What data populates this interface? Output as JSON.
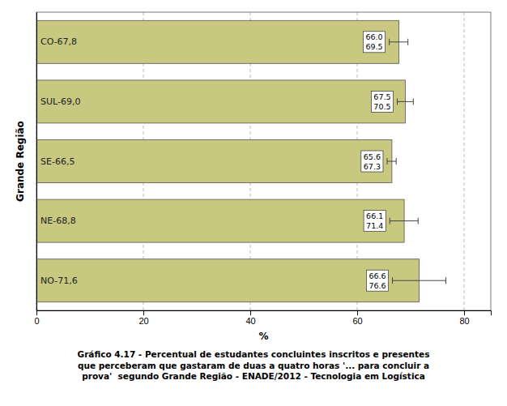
{
  "chart_data": {
    "type": "bar",
    "orientation": "horizontal",
    "title": "Gráfico 4.17 - Percentual de estudantes concluintes inscritos e presentes\nque perceberam que gastaram de duas a quatro horas '... para concluir a\nprova'  segundo Grande Região - ENADE/2012 - Tecnologia em Logística",
    "xlabel": "%",
    "ylabel": "Grande Região",
    "categories": [
      "NO",
      "NE",
      "SE",
      "SUL",
      "CO"
    ],
    "values": [
      71.6,
      68.8,
      66.5,
      69.0,
      67.8
    ],
    "color": "#C8C880",
    "ci_low": [
      66.6,
      66.1,
      65.6,
      67.5,
      66.0
    ],
    "ci_high": [
      76.6,
      71.4,
      67.3,
      70.5,
      69.5
    ],
    "ci_low_labels": [
      "66.6",
      "66.1",
      "65.6",
      "67.5",
      "66.0"
    ],
    "ci_high_labels": [
      "76.6",
      "71.4",
      "67.3",
      "70.5",
      "69.5"
    ],
    "data_labels": true,
    "value_labels": [
      "NO-71,6",
      "NE-68,8",
      "SE-66,5",
      "SUL-69,0",
      "CO-67,8"
    ],
    "xlim": [
      0,
      85
    ],
    "xticks": [
      0,
      20,
      40,
      60,
      80
    ],
    "grid": true,
    "tick_labels": "x"
  }
}
